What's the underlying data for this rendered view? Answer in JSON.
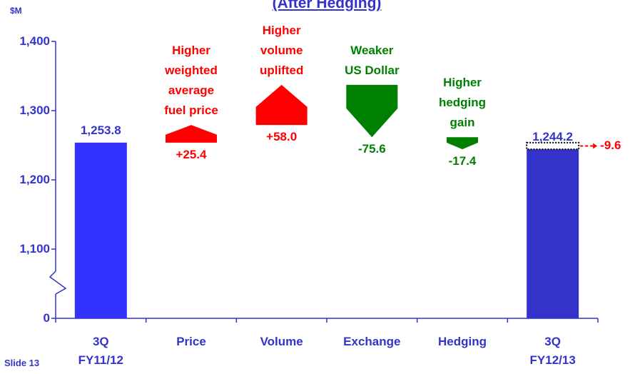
{
  "chart_data": {
    "type": "waterfall",
    "title": "(After Hedging)",
    "unit_label": "$M",
    "footer": "Slide 13",
    "categories": [
      "3Q\nFY11/12",
      "Price",
      "Volume",
      "Exchange",
      "Hedging",
      "3Q\nFY12/13"
    ],
    "measure": [
      "absolute",
      "relative",
      "relative",
      "relative",
      "relative",
      "absolute"
    ],
    "values": [
      1253.8,
      25.4,
      58.0,
      -75.6,
      -17.4,
      1244.2
    ],
    "value_labels": [
      "1,253.8",
      "+25.4",
      "+58.0",
      "-75.6",
      "-17.4",
      "1,244.2"
    ],
    "descriptions": [
      null,
      "Higher\nweighted\naverage\nfuel price",
      "Higher\nvolume\nuplifted",
      "Weaker\nUS Dollar",
      "Higher\nhedging\ngain",
      null
    ],
    "change": {
      "value": -9.6,
      "label": "-9.6"
    },
    "colors": {
      "absolute": [
        "#3333ff",
        "#3333cc"
      ],
      "increase": "#ff0000",
      "decrease": "#008000"
    },
    "ylim": [
      0,
      1400
    ],
    "y_break": [
      0,
      1000
    ],
    "yticks": [
      0,
      {
        "value": 1100,
        "label": "1,100"
      },
      {
        "value": 1200,
        "label": "1,200"
      },
      {
        "value": 1300,
        "label": "1,300"
      },
      {
        "value": 1400,
        "label": "1,400"
      }
    ]
  }
}
